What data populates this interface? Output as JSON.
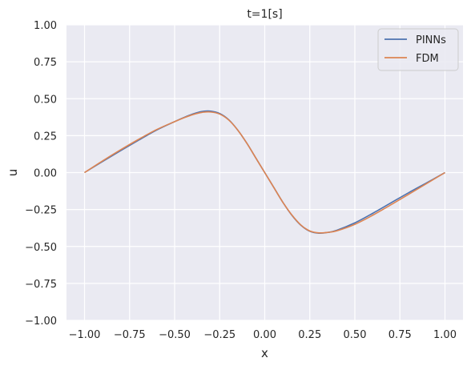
{
  "chart_data": {
    "type": "line",
    "title": "t=1[s]",
    "xlabel": "x",
    "ylabel": "u",
    "xlim": [
      -1.1,
      1.1
    ],
    "ylim": [
      -1.0,
      1.0
    ],
    "xticks": [
      -1.0,
      -0.75,
      -0.5,
      -0.25,
      0.0,
      0.25,
      0.5,
      0.75,
      1.0
    ],
    "yticks": [
      -1.0,
      -0.75,
      -0.5,
      -0.25,
      0.0,
      0.25,
      0.5,
      0.75,
      1.0
    ],
    "xtick_labels": [
      "−1.00",
      "−0.75",
      "−0.50",
      "−0.25",
      "0.00",
      "0.25",
      "0.50",
      "0.75",
      "1.00"
    ],
    "ytick_labels": [
      "−1.00",
      "−0.75",
      "−0.50",
      "−0.25",
      "0.00",
      "0.25",
      "0.50",
      "0.75",
      "1.00"
    ],
    "grid": true,
    "background": "#eaeaf2",
    "legend_position": "top-right",
    "series": [
      {
        "name": "PINNs",
        "color": "#4c72b0",
        "x": [
          -1.0,
          -0.9,
          -0.8,
          -0.7,
          -0.6,
          -0.5,
          -0.45,
          -0.4,
          -0.35,
          -0.3,
          -0.25,
          -0.2,
          -0.15,
          -0.1,
          -0.05,
          0.0,
          0.05,
          0.1,
          0.15,
          0.2,
          0.25,
          0.3,
          0.35,
          0.4,
          0.5,
          0.6,
          0.7,
          0.8,
          0.9,
          1.0
        ],
        "y": [
          0.0,
          0.075,
          0.148,
          0.219,
          0.288,
          0.345,
          0.372,
          0.396,
          0.413,
          0.416,
          0.4,
          0.358,
          0.288,
          0.2,
          0.1,
          0.0,
          -0.1,
          -0.2,
          -0.288,
          -0.356,
          -0.397,
          -0.41,
          -0.405,
          -0.39,
          -0.34,
          -0.275,
          -0.205,
          -0.135,
          -0.068,
          0.0
        ]
      },
      {
        "name": "FDM",
        "color": "#dd8452",
        "x": [
          -1.0,
          -0.9,
          -0.8,
          -0.7,
          -0.6,
          -0.5,
          -0.45,
          -0.4,
          -0.35,
          -0.3,
          -0.25,
          -0.2,
          -0.15,
          -0.1,
          -0.05,
          0.0,
          0.05,
          0.1,
          0.15,
          0.2,
          0.25,
          0.3,
          0.35,
          0.4,
          0.5,
          0.6,
          0.7,
          0.8,
          0.9,
          1.0
        ],
        "y": [
          0.0,
          0.079,
          0.154,
          0.225,
          0.291,
          0.345,
          0.37,
          0.392,
          0.407,
          0.41,
          0.396,
          0.356,
          0.288,
          0.2,
          0.1,
          0.0,
          -0.1,
          -0.2,
          -0.286,
          -0.354,
          -0.395,
          -0.408,
          -0.405,
          -0.394,
          -0.35,
          -0.288,
          -0.218,
          -0.146,
          -0.073,
          0.0
        ]
      }
    ]
  }
}
